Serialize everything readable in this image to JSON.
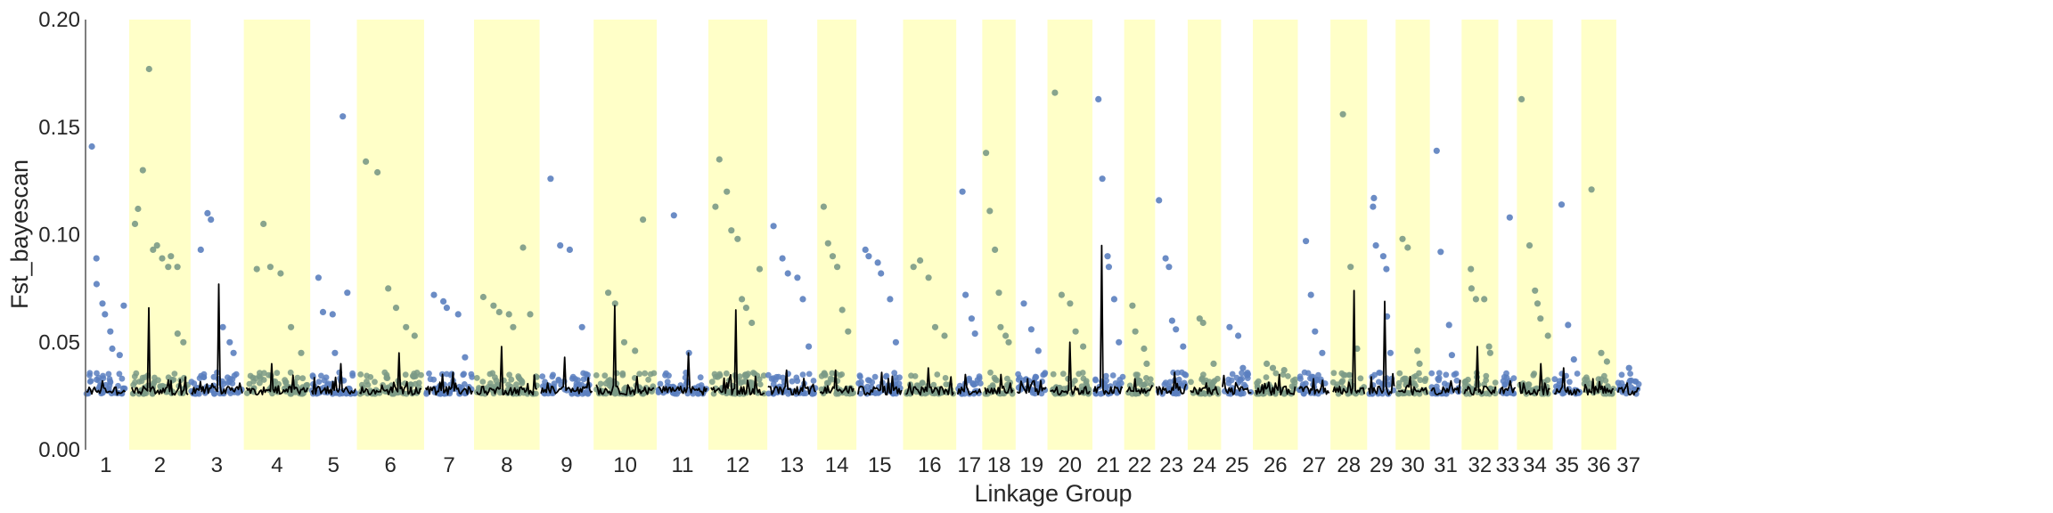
{
  "chart_data": {
    "type": "scatter",
    "xlabel": "Linkage Group",
    "ylabel": "Fst_bayescan",
    "ylim": [
      0,
      0.2
    ],
    "y_ticks": [
      "0.00",
      "0.05",
      "0.10",
      "0.15",
      "0.20"
    ],
    "grid": false,
    "legend": "none",
    "colors": {
      "odd_group_points": "#5b7fbf",
      "even_group_points": "#7b9a86",
      "highlight_band": "#ffffc8",
      "rolling_line": "#000000",
      "axis": "#555555"
    },
    "series_notes": "points = per-SNP Fst values; black line = sliding-window mean; shaded bands mark even-numbered linkage groups",
    "groups": [
      {
        "label": "1",
        "span": [
          0,
          47
        ],
        "outliers": [
          0.141,
          0.089,
          0.077,
          0.068,
          0.063,
          0.055,
          0.047,
          0.044,
          0.067
        ],
        "line_peak": 0.032
      },
      {
        "label": "2",
        "span": [
          55,
          123
        ],
        "outliers": [
          0.105,
          0.112,
          0.13,
          0.177,
          0.093,
          0.095,
          0.089,
          0.085,
          0.09,
          0.085,
          0.054,
          0.05
        ],
        "line_peak": 0.066
      },
      {
        "label": "3",
        "span": [
          127,
          189
        ],
        "outliers": [
          0.093,
          0.11,
          0.107,
          0.057,
          0.05,
          0.045
        ],
        "line_peak": 0.077
      },
      {
        "label": "4",
        "span": [
          194,
          268
        ],
        "outliers": [
          0.084,
          0.105,
          0.085,
          0.082,
          0.057,
          0.045
        ],
        "line_peak": 0.04
      },
      {
        "label": "5",
        "span": [
          273,
          326
        ],
        "outliers": [
          0.08,
          0.064,
          0.063,
          0.045,
          0.155,
          0.073
        ],
        "line_peak": 0.04
      },
      {
        "label": "6",
        "span": [
          331,
          406
        ],
        "outliers": [
          0.134,
          0.129,
          0.075,
          0.066,
          0.057,
          0.053
        ],
        "line_peak": 0.045
      },
      {
        "label": "7",
        "span": [
          411,
          468
        ],
        "outliers": [
          0.072,
          0.069,
          0.066,
          0.063,
          0.043
        ],
        "line_peak": 0.036
      },
      {
        "label": "8",
        "span": [
          473,
          546
        ],
        "outliers": [
          0.071,
          0.067,
          0.064,
          0.063,
          0.057,
          0.094,
          0.063
        ],
        "line_peak": 0.048
      },
      {
        "label": "9",
        "span": [
          551,
          613
        ],
        "outliers": [
          0.126,
          0.095,
          0.093,
          0.057
        ],
        "line_peak": 0.043
      },
      {
        "label": "10",
        "span": [
          618,
          688
        ],
        "outliers": [
          0.073,
          0.068,
          0.05,
          0.046,
          0.107
        ],
        "line_peak": 0.067
      },
      {
        "label": "11",
        "span": [
          693,
          752
        ],
        "outliers": [
          0.109,
          0.045
        ],
        "line_peak": 0.045
      },
      {
        "label": "12",
        "span": [
          757,
          822
        ],
        "outliers": [
          0.113,
          0.135,
          0.12,
          0.102,
          0.098,
          0.07,
          0.066,
          0.059,
          0.084
        ],
        "line_peak": 0.065
      },
      {
        "label": "13",
        "span": [
          826,
          884
        ],
        "outliers": [
          0.104,
          0.089,
          0.082,
          0.08,
          0.07,
          0.048
        ],
        "line_peak": 0.037
      },
      {
        "label": "14",
        "span": [
          889,
          930
        ],
        "outliers": [
          0.113,
          0.096,
          0.09,
          0.085,
          0.065,
          0.055
        ],
        "line_peak": 0.037
      },
      {
        "label": "15",
        "span": [
          935,
          988
        ],
        "outliers": [
          0.093,
          0.09,
          0.087,
          0.082,
          0.07,
          0.05
        ],
        "line_peak": 0.036
      },
      {
        "label": "16",
        "span": [
          993,
          1051
        ],
        "outliers": [
          0.085,
          0.088,
          0.08,
          0.057,
          0.053
        ],
        "line_peak": 0.038
      },
      {
        "label": "17",
        "span": [
          1056,
          1084
        ],
        "outliers": [
          0.12,
          0.072,
          0.061,
          0.054
        ],
        "line_peak": 0.035
      },
      {
        "label": "18",
        "span": [
          1089,
          1123
        ],
        "outliers": [
          0.138,
          0.111,
          0.093,
          0.073,
          0.057,
          0.053,
          0.05
        ],
        "line_peak": 0.035
      },
      {
        "label": "19",
        "span": [
          1128,
          1163
        ],
        "outliers": [
          0.068,
          0.056,
          0.046
        ],
        "line_peak": 0.033
      },
      {
        "label": "20",
        "span": [
          1168,
          1216
        ],
        "outliers": [
          0.166,
          0.072,
          0.068,
          0.055,
          0.048
        ],
        "line_peak": 0.05
      },
      {
        "label": "21",
        "span": [
          1221,
          1256
        ],
        "outliers": [
          0.163,
          0.126,
          0.09,
          0.085,
          0.07,
          0.05
        ],
        "line_peak": 0.095
      },
      {
        "label": "22",
        "span": [
          1261,
          1292
        ],
        "outliers": [
          0.067,
          0.055,
          0.047,
          0.04
        ],
        "line_peak": 0.033
      },
      {
        "label": "23",
        "span": [
          1297,
          1333
        ],
        "outliers": [
          0.116,
          0.089,
          0.085,
          0.06,
          0.056,
          0.048
        ],
        "line_peak": 0.036
      },
      {
        "label": "24",
        "span": [
          1338,
          1372
        ],
        "outliers": [
          0.061,
          0.059,
          0.04
        ],
        "line_peak": 0.031
      },
      {
        "label": "25",
        "span": [
          1377,
          1412
        ],
        "outliers": [
          0.057,
          0.053,
          0.038
        ],
        "line_peak": 0.03
      },
      {
        "label": "26",
        "span": [
          1417,
          1465
        ],
        "outliers": [
          0.04,
          0.038,
          0.037
        ],
        "line_peak": 0.035
      },
      {
        "label": "27",
        "span": [
          1470,
          1506
        ],
        "outliers": [
          0.097,
          0.072,
          0.055,
          0.045
        ],
        "line_peak": 0.033
      },
      {
        "label": "28",
        "span": [
          1511,
          1549
        ],
        "outliers": [
          0.156,
          0.085,
          0.047
        ],
        "line_peak": 0.074
      },
      {
        "label": "29",
        "span": [
          1554,
          1585
        ],
        "outliers": [
          0.117,
          0.113,
          0.095,
          0.09,
          0.084,
          0.062,
          0.045
        ],
        "line_peak": 0.069
      },
      {
        "label": "30",
        "span": [
          1590,
          1625
        ],
        "outliers": [
          0.098,
          0.094,
          0.046,
          0.04
        ],
        "line_peak": 0.034
      },
      {
        "label": "31",
        "span": [
          1630,
          1665
        ],
        "outliers": [
          0.139,
          0.092,
          0.058,
          0.044
        ],
        "line_peak": 0.032
      },
      {
        "label": "32",
        "span": [
          1670,
          1708
        ],
        "outliers": [
          0.084,
          0.075,
          0.07,
          0.07,
          0.048,
          0.045
        ],
        "line_peak": 0.048
      },
      {
        "label": "33",
        "span": [
          1713,
          1732
        ],
        "outliers": [
          0.108
        ],
        "line_peak": 0.032
      },
      {
        "label": "34",
        "span": [
          1737,
          1774
        ],
        "outliers": [
          0.163,
          0.095,
          0.074,
          0.068,
          0.061,
          0.053
        ],
        "line_peak": 0.04
      },
      {
        "label": "35",
        "span": [
          1779,
          1810
        ],
        "outliers": [
          0.114,
          0.058,
          0.042
        ],
        "line_peak": 0.038
      },
      {
        "label": "36",
        "span": [
          1815,
          1851
        ],
        "outliers": [
          0.121,
          0.045,
          0.041
        ],
        "line_peak": 0.033
      },
      {
        "label": "37",
        "span": [
          1856,
          1882
        ],
        "outliers": [
          0.038
        ],
        "line_peak": 0.031
      }
    ]
  }
}
